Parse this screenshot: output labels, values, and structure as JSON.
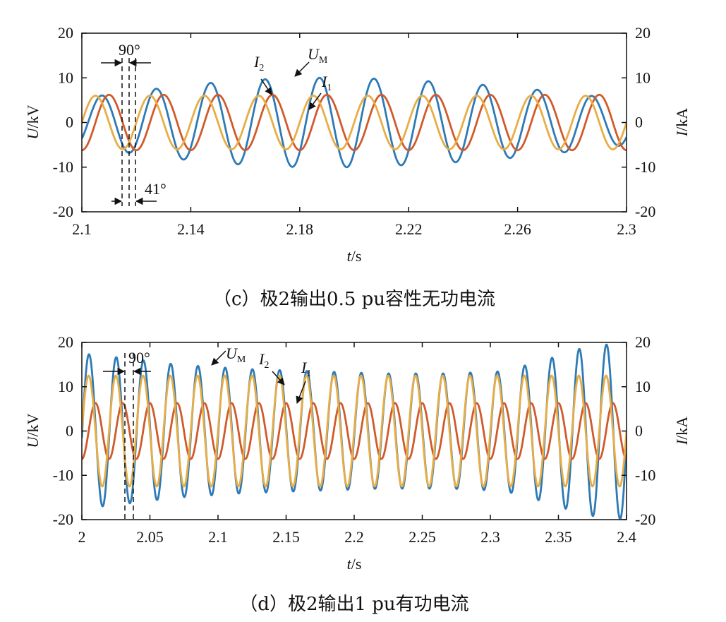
{
  "chart_data": [
    {
      "type": "line",
      "caption": "（c）极2输出0.5 pu容性无功电流",
      "xlabel": {
        "var": "t",
        "unit": "/s"
      },
      "ylabel_left": {
        "var": "U",
        "unit": "/kV"
      },
      "ylabel_right": {
        "var": "I",
        "unit": "/kA"
      },
      "xlim": [
        2.1,
        2.3
      ],
      "ylim": [
        -20,
        20
      ],
      "xticks": [
        2.1,
        2.14,
        2.18,
        2.22,
        2.26,
        2.3
      ],
      "xtick_labels": [
        "2.1",
        "2.14",
        "2.18",
        "2.22",
        "2.26",
        "2.3"
      ],
      "yticks": [
        -20,
        -10,
        0,
        10,
        20
      ],
      "ytick_labels": [
        "-20",
        "-10",
        "0",
        "10",
        "20"
      ],
      "frequency_hz": 50,
      "series": [
        {
          "name": "U_M",
          "color": "#2e7ab5",
          "phase_deg": -41,
          "envelope_t": [
            2.1,
            2.12,
            2.14,
            2.16,
            2.18,
            2.2,
            2.22,
            2.24,
            2.26,
            2.28,
            2.3
          ],
          "envelope_amp": [
            5.5,
            7,
            8.5,
            9.5,
            10,
            10,
            9.5,
            8.8,
            7.8,
            6.5,
            5
          ]
        },
        {
          "name": "I_1",
          "color": "#d15a2b",
          "phase_deg": -90,
          "envelope_t": [
            2.1,
            2.3
          ],
          "envelope_amp": [
            6.2,
            6.2
          ]
        },
        {
          "name": "I_2",
          "color": "#e8ad46",
          "phase_deg": 0,
          "envelope_t": [
            2.1,
            2.3
          ],
          "envelope_amp": [
            6,
            6
          ]
        }
      ],
      "annotations": {
        "angle_top": "90°",
        "angle_bottom": "41°",
        "markers": [
          {
            "letter": "U",
            "sub": "M"
          },
          {
            "letter": "I",
            "sub": "2"
          },
          {
            "letter": "I",
            "sub": "1"
          }
        ]
      }
    },
    {
      "type": "line",
      "caption": "（d）极2输出1 pu有功电流",
      "xlabel": {
        "var": "t",
        "unit": "/s"
      },
      "ylabel_left": {
        "var": "U",
        "unit": "/kV"
      },
      "ylabel_right": {
        "var": "I",
        "unit": "/kA"
      },
      "xlim": [
        2.0,
        2.4
      ],
      "ylim": [
        -20,
        20
      ],
      "xticks": [
        2.0,
        2.05,
        2.1,
        2.15,
        2.2,
        2.25,
        2.3,
        2.35,
        2.4
      ],
      "xtick_labels": [
        "2",
        "2.05",
        "2.1",
        "2.15",
        "2.2",
        "2.25",
        "2.3",
        "2.35",
        "2.4"
      ],
      "yticks": [
        -20,
        -10,
        0,
        10,
        20
      ],
      "ytick_labels": [
        "-20",
        "-10",
        "0",
        "10",
        "20"
      ],
      "frequency_hz": 50,
      "series": [
        {
          "name": "U_M",
          "color": "#2e7ab5",
          "phase_deg": -5,
          "envelope_t": [
            2.0,
            2.03,
            2.07,
            2.12,
            2.17,
            2.22,
            2.27,
            2.31,
            2.34,
            2.37,
            2.4
          ],
          "envelope_amp": [
            17.5,
            16.5,
            15,
            14,
            13.5,
            13,
            13,
            13.5,
            16,
            19,
            20
          ]
        },
        {
          "name": "I_1",
          "color": "#d15a2b",
          "phase_deg": -90,
          "envelope_t": [
            2.0,
            2.4
          ],
          "envelope_amp": [
            6.3,
            6.3
          ]
        },
        {
          "name": "I_2",
          "color": "#e8ad46",
          "phase_deg": 0,
          "envelope_t": [
            2.0,
            2.4
          ],
          "envelope_amp": [
            12.5,
            12.5
          ]
        }
      ],
      "annotations": {
        "angle_top": "90°",
        "markers": [
          {
            "letter": "U",
            "sub": "M"
          },
          {
            "letter": "I",
            "sub": "2"
          },
          {
            "letter": "I",
            "sub": "1"
          }
        ]
      }
    }
  ]
}
